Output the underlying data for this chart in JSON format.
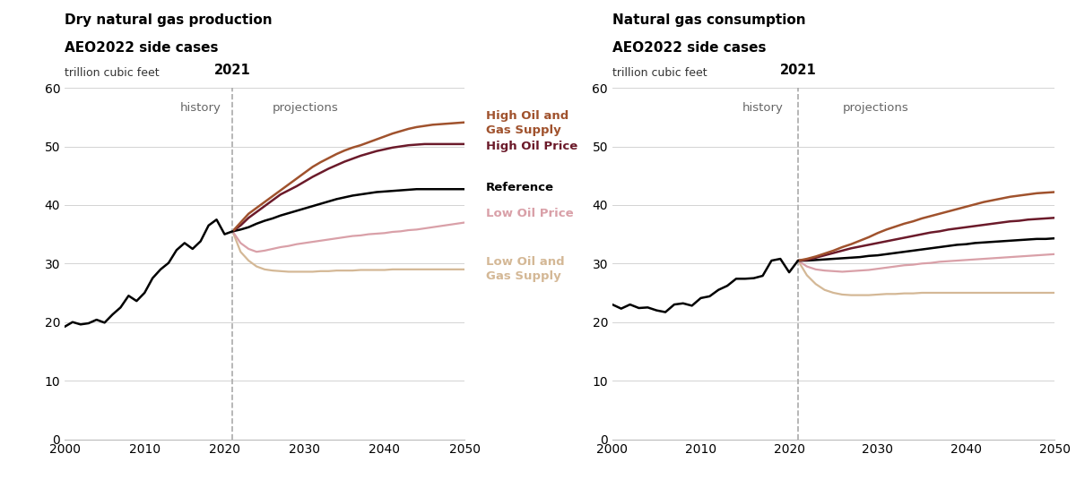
{
  "left_title_line1": "Dry natural gas production",
  "left_title_line2": "AEO2022 side cases",
  "left_ylabel": "trillion cubic feet",
  "right_title_line1": "Natural gas consumption",
  "right_title_line2": "AEO2022 side cases",
  "right_ylabel": "trillion cubic feet",
  "split_year": 2021,
  "xlim": [
    2000,
    2050
  ],
  "ylim": [
    0,
    60
  ],
  "yticks": [
    0,
    10,
    20,
    30,
    40,
    50,
    60
  ],
  "xticks": [
    2000,
    2010,
    2020,
    2030,
    2040,
    2050
  ],
  "colors": {
    "high_oil_gas_supply": "#A0522D",
    "high_oil_price": "#6B1A2A",
    "reference": "#000000",
    "low_oil_price": "#D9A0A8",
    "low_oil_gas_supply": "#D4B896"
  },
  "prod_history_years": [
    2000,
    2001,
    2002,
    2003,
    2004,
    2005,
    2006,
    2007,
    2008,
    2009,
    2010,
    2011,
    2012,
    2013,
    2014,
    2015,
    2016,
    2017,
    2018,
    2019,
    2020,
    2021
  ],
  "prod_history_values": [
    19.2,
    20.0,
    19.6,
    19.8,
    20.4,
    19.9,
    21.3,
    22.5,
    24.5,
    23.6,
    25.0,
    27.5,
    29.0,
    30.1,
    32.3,
    33.5,
    32.5,
    33.8,
    36.5,
    37.5,
    35.0,
    35.5
  ],
  "prod_proj_years": [
    2021,
    2022,
    2023,
    2024,
    2025,
    2026,
    2027,
    2028,
    2029,
    2030,
    2031,
    2032,
    2033,
    2034,
    2035,
    2036,
    2037,
    2038,
    2039,
    2040,
    2041,
    2042,
    2043,
    2044,
    2045,
    2046,
    2047,
    2048,
    2049,
    2050
  ],
  "prod_high_og_supply": [
    35.5,
    37.0,
    38.5,
    39.5,
    40.5,
    41.5,
    42.5,
    43.5,
    44.5,
    45.5,
    46.5,
    47.3,
    48.0,
    48.7,
    49.3,
    49.8,
    50.2,
    50.7,
    51.2,
    51.7,
    52.2,
    52.6,
    53.0,
    53.3,
    53.5,
    53.7,
    53.8,
    53.9,
    54.0,
    54.1
  ],
  "prod_high_oil_price": [
    35.5,
    36.5,
    37.8,
    38.8,
    39.8,
    40.8,
    41.8,
    42.5,
    43.2,
    44.0,
    44.8,
    45.5,
    46.2,
    46.8,
    47.4,
    47.9,
    48.4,
    48.8,
    49.2,
    49.5,
    49.8,
    50.0,
    50.2,
    50.3,
    50.4,
    50.4,
    50.4,
    50.4,
    50.4,
    50.4
  ],
  "prod_reference": [
    35.5,
    35.8,
    36.2,
    36.8,
    37.3,
    37.7,
    38.2,
    38.6,
    39.0,
    39.4,
    39.8,
    40.2,
    40.6,
    41.0,
    41.3,
    41.6,
    41.8,
    42.0,
    42.2,
    42.3,
    42.4,
    42.5,
    42.6,
    42.7,
    42.7,
    42.7,
    42.7,
    42.7,
    42.7,
    42.7
  ],
  "prod_low_oil_price": [
    35.5,
    33.5,
    32.5,
    32.0,
    32.2,
    32.5,
    32.8,
    33.0,
    33.3,
    33.5,
    33.7,
    33.9,
    34.1,
    34.3,
    34.5,
    34.7,
    34.8,
    35.0,
    35.1,
    35.2,
    35.4,
    35.5,
    35.7,
    35.8,
    36.0,
    36.2,
    36.4,
    36.6,
    36.8,
    37.0
  ],
  "prod_low_og_supply": [
    35.5,
    32.0,
    30.5,
    29.5,
    29.0,
    28.8,
    28.7,
    28.6,
    28.6,
    28.6,
    28.6,
    28.7,
    28.7,
    28.8,
    28.8,
    28.8,
    28.9,
    28.9,
    28.9,
    28.9,
    29.0,
    29.0,
    29.0,
    29.0,
    29.0,
    29.0,
    29.0,
    29.0,
    29.0,
    29.0
  ],
  "cons_history_years": [
    2000,
    2001,
    2002,
    2003,
    2004,
    2005,
    2006,
    2007,
    2008,
    2009,
    2010,
    2011,
    2012,
    2013,
    2014,
    2015,
    2016,
    2017,
    2018,
    2019,
    2020,
    2021
  ],
  "cons_history_values": [
    23.0,
    22.3,
    23.0,
    22.4,
    22.5,
    22.0,
    21.7,
    23.0,
    23.2,
    22.8,
    24.1,
    24.4,
    25.5,
    26.2,
    27.4,
    27.4,
    27.5,
    27.9,
    30.5,
    30.8,
    28.5,
    30.5
  ],
  "cons_proj_years": [
    2021,
    2022,
    2023,
    2024,
    2025,
    2026,
    2027,
    2028,
    2029,
    2030,
    2031,
    2032,
    2033,
    2034,
    2035,
    2036,
    2037,
    2038,
    2039,
    2040,
    2041,
    2042,
    2043,
    2044,
    2045,
    2046,
    2047,
    2048,
    2049,
    2050
  ],
  "cons_high_og_supply": [
    30.5,
    30.8,
    31.2,
    31.7,
    32.2,
    32.8,
    33.3,
    33.9,
    34.5,
    35.2,
    35.8,
    36.3,
    36.8,
    37.2,
    37.7,
    38.1,
    38.5,
    38.9,
    39.3,
    39.7,
    40.1,
    40.5,
    40.8,
    41.1,
    41.4,
    41.6,
    41.8,
    42.0,
    42.1,
    42.2
  ],
  "cons_high_oil_price": [
    30.5,
    30.6,
    31.0,
    31.4,
    31.8,
    32.2,
    32.6,
    32.9,
    33.2,
    33.5,
    33.8,
    34.1,
    34.4,
    34.7,
    35.0,
    35.3,
    35.5,
    35.8,
    36.0,
    36.2,
    36.4,
    36.6,
    36.8,
    37.0,
    37.2,
    37.3,
    37.5,
    37.6,
    37.7,
    37.8
  ],
  "cons_reference": [
    30.5,
    30.5,
    30.6,
    30.7,
    30.8,
    30.9,
    31.0,
    31.1,
    31.3,
    31.4,
    31.6,
    31.8,
    32.0,
    32.2,
    32.4,
    32.6,
    32.8,
    33.0,
    33.2,
    33.3,
    33.5,
    33.6,
    33.7,
    33.8,
    33.9,
    34.0,
    34.1,
    34.2,
    34.2,
    34.3
  ],
  "cons_low_oil_price": [
    30.5,
    29.5,
    29.0,
    28.8,
    28.7,
    28.6,
    28.7,
    28.8,
    28.9,
    29.1,
    29.3,
    29.5,
    29.7,
    29.8,
    30.0,
    30.1,
    30.3,
    30.4,
    30.5,
    30.6,
    30.7,
    30.8,
    30.9,
    31.0,
    31.1,
    31.2,
    31.3,
    31.4,
    31.5,
    31.6
  ],
  "cons_low_og_supply": [
    30.5,
    28.0,
    26.5,
    25.5,
    25.0,
    24.7,
    24.6,
    24.6,
    24.6,
    24.7,
    24.8,
    24.8,
    24.9,
    24.9,
    25.0,
    25.0,
    25.0,
    25.0,
    25.0,
    25.0,
    25.0,
    25.0,
    25.0,
    25.0,
    25.0,
    25.0,
    25.0,
    25.0,
    25.0,
    25.0
  ]
}
